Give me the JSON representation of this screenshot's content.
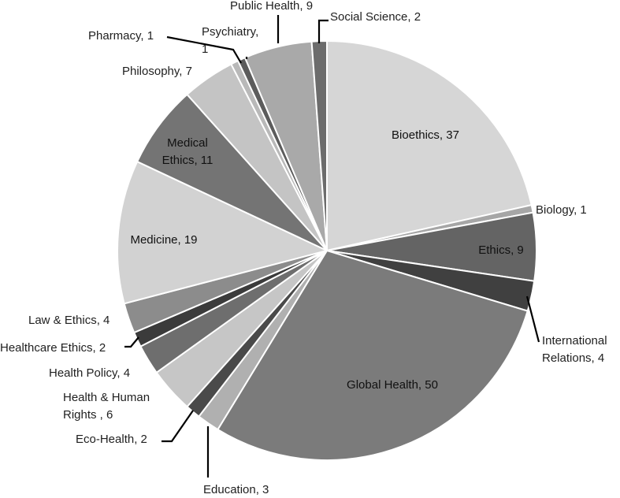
{
  "chart_data": {
    "type": "pie",
    "title": "",
    "start_angle_deg": 0,
    "direction": "clockwise",
    "slices": [
      {
        "name": "Bioethics",
        "value": 37,
        "label": "Bioethics,  37",
        "color": "#d6d6d6"
      },
      {
        "name": "Biology",
        "value": 1,
        "label": "Biology,  1",
        "color": "#a6a6a6"
      },
      {
        "name": "Ethics",
        "value": 9,
        "label": "Ethics, 9",
        "color": "#646464"
      },
      {
        "name": "International Relations",
        "value": 4,
        "label": [
          "International",
          "Relations, 4"
        ],
        "color": "#404040"
      },
      {
        "name": "Global Health",
        "value": 50,
        "label": "Global Health, 50",
        "color": "#7b7b7b"
      },
      {
        "name": "Education",
        "value": 3,
        "label": "Education, 3",
        "color": "#b0b0b0"
      },
      {
        "name": "Eco-Health",
        "value": 2,
        "label": "Eco-Health, 2",
        "color": "#4a4a4a"
      },
      {
        "name": "Health & Human Rights",
        "value": 6,
        "label": [
          "Health & Human",
          "Rights , 6"
        ],
        "color": "#c6c6c6"
      },
      {
        "name": "Health Policy",
        "value": 4,
        "label": "Health Policy, 4",
        "color": "#6e6e6e"
      },
      {
        "name": "Healthcare Ethics",
        "value": 2,
        "label": "Healthcare  Ethics, 2",
        "color": "#3b3b3b"
      },
      {
        "name": "Law & Ethics",
        "value": 4,
        "label": "Law & Ethics, 4",
        "color": "#8c8c8c"
      },
      {
        "name": "Medicine",
        "value": 19,
        "label": "Medicine, 19",
        "color": "#d2d2d2"
      },
      {
        "name": "Medical Ethics",
        "value": 11,
        "label": [
          "Medical",
          "Ethics, 11"
        ],
        "color": "#747474"
      },
      {
        "name": "Philosophy",
        "value": 7,
        "label": "Philosophy, 7",
        "color": "#c4c4c4"
      },
      {
        "name": "Pharmacy",
        "value": 1,
        "label": "Pharmacy, 1",
        "color": "#b9b9b9"
      },
      {
        "name": "Psychiatry",
        "value": 1,
        "label": [
          "Psychiatry,",
          "1"
        ],
        "color": "#5c5c5c"
      },
      {
        "name": "Public Health",
        "value": 9,
        "label": "Public  Health, 9",
        "color": "#a9a9a9"
      },
      {
        "name": "Social Science",
        "value": 2,
        "label": "Social Science, 2",
        "color": "#6c6c6c"
      }
    ]
  }
}
